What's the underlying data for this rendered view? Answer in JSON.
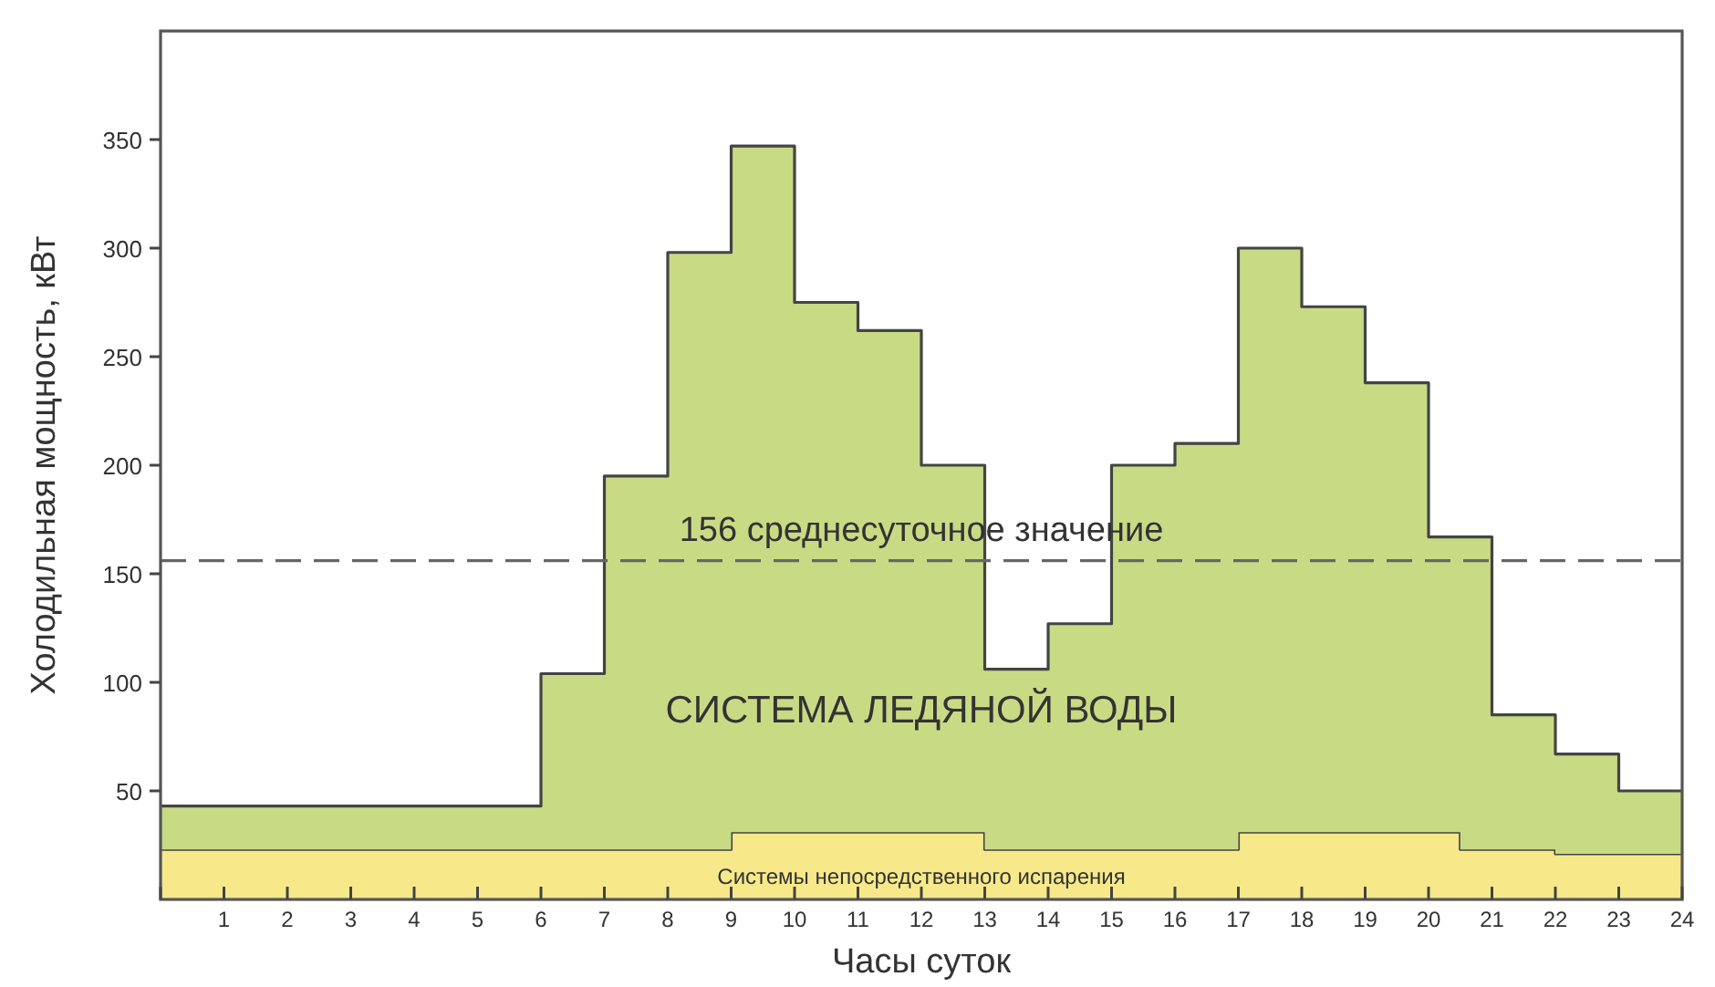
{
  "chart_data": {
    "type": "area",
    "stacked": true,
    "xlabel": "Часы суток",
    "ylabel": "Холодильная мощность, кВт",
    "x": [
      0,
      6,
      6,
      7,
      7,
      8,
      8,
      9,
      9,
      10,
      10,
      11,
      11,
      12,
      12,
      13,
      13,
      14,
      14,
      15,
      15,
      16,
      16,
      17,
      17,
      18,
      18,
      19,
      19,
      20,
      20,
      20.5,
      20.5,
      21,
      21,
      22,
      22,
      23,
      23,
      24
    ],
    "series": [
      {
        "name": "Системы непосредственного испарения",
        "color": "#f7e98a",
        "values": [
          23,
          23,
          23,
          23,
          23,
          23,
          23,
          23,
          31,
          31,
          31,
          31,
          31,
          31,
          31,
          31,
          23,
          23,
          23,
          23,
          23,
          23,
          23,
          23,
          31,
          31,
          31,
          31,
          31,
          31,
          31,
          31,
          23,
          23,
          23,
          23,
          21,
          21,
          21,
          21
        ]
      },
      {
        "name": "СИСТЕМА ЛЕДЯНОЙ ВОДЫ",
        "color": "#c9da84",
        "values": [
          20,
          20,
          81,
          81,
          172,
          172,
          275,
          275,
          316,
          316,
          244,
          244,
          231,
          231,
          169,
          169,
          83,
          83,
          104,
          104,
          177,
          177,
          187,
          187,
          269,
          269,
          242,
          242,
          207,
          207,
          136,
          136,
          144,
          144,
          62,
          62,
          46,
          46,
          29,
          29
        ]
      }
    ],
    "xlim": [
      0,
      24
    ],
    "xticks": [
      {
        "value": 0,
        "label": null
      },
      1,
      2,
      3,
      4,
      5,
      6,
      7,
      8,
      9,
      10,
      11,
      12,
      13,
      14,
      15,
      16,
      17,
      18,
      19,
      20,
      21,
      22,
      23,
      24
    ],
    "ylim": [
      0,
      400
    ],
    "yticks": [
      50,
      100,
      150,
      200,
      250,
      300,
      350
    ],
    "ref_lines": [
      {
        "axis": "y",
        "value": 156,
        "label": "156 среднесуточное значение",
        "color": "#666666",
        "line_style": "dashed"
      }
    ],
    "grid": false,
    "legend": false
  }
}
